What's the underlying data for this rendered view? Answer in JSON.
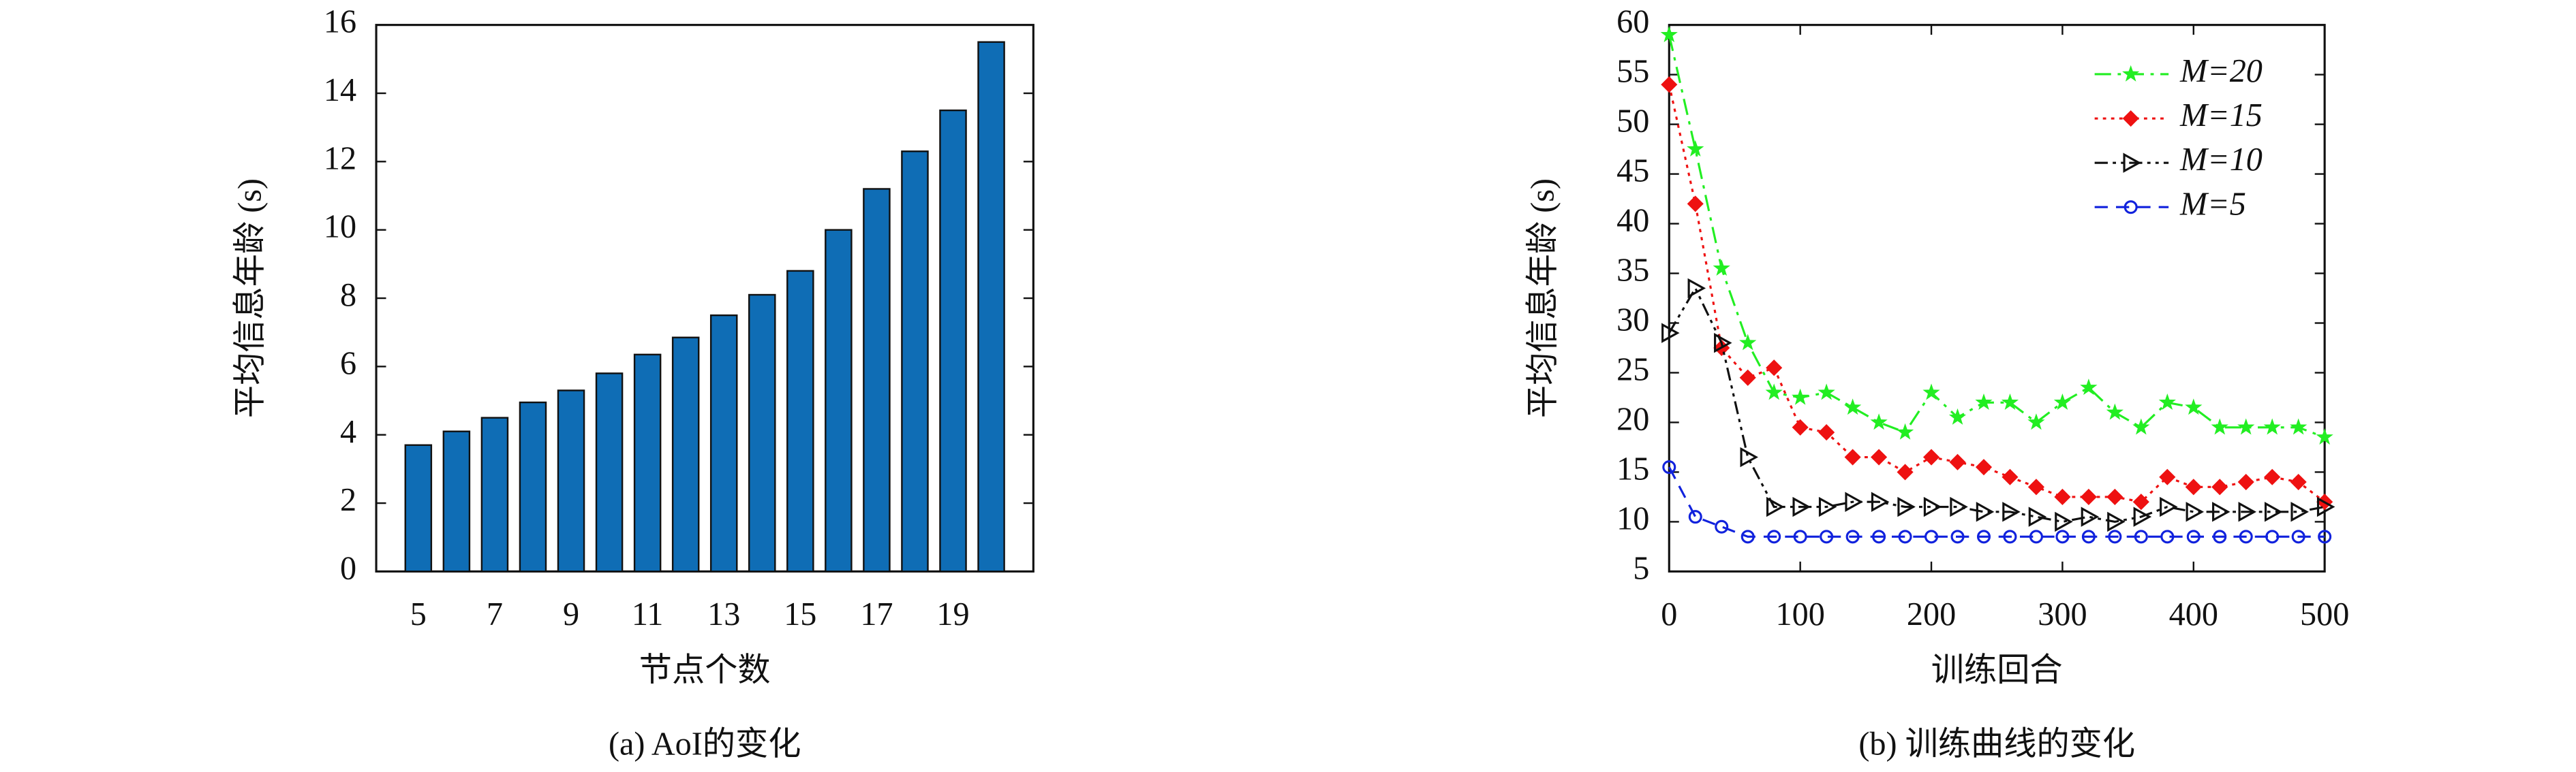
{
  "chart_data": [
    {
      "type": "bar",
      "caption": "(a) AoI的变化",
      "x_label": "节点个数",
      "y_label": "平均信息年龄 (s)",
      "categories": [
        5,
        null,
        7,
        null,
        9,
        null,
        11,
        null,
        13,
        null,
        15,
        null,
        17,
        null,
        19,
        null
      ],
      "values": [
        3.7,
        4.1,
        4.5,
        4.95,
        5.3,
        5.8,
        6.35,
        6.85,
        7.5,
        8.1,
        8.8,
        10.0,
        11.2,
        12.3,
        13.5,
        15.5
      ],
      "color": "#0f6db5",
      "ylim": [
        0,
        16
      ],
      "yticks": [
        0,
        2,
        4,
        6,
        8,
        10,
        12,
        14,
        16
      ]
    },
    {
      "type": "line",
      "caption": "(b) 训练曲线的变化",
      "x_label": "训练回合",
      "y_label": "平均信息年龄 (s)",
      "x": [
        0,
        20,
        40,
        60,
        80,
        100,
        120,
        140,
        160,
        180,
        200,
        220,
        240,
        260,
        280,
        300,
        320,
        340,
        360,
        380,
        400,
        420,
        440,
        460,
        480,
        500
      ],
      "xlim": [
        0,
        500
      ],
      "xticks": [
        0,
        100,
        200,
        300,
        400,
        500
      ],
      "ylim": [
        5,
        60
      ],
      "yticks": [
        5,
        10,
        15,
        20,
        25,
        30,
        35,
        40,
        45,
        50,
        55,
        60
      ],
      "legend": "upper right",
      "series": [
        {
          "name": "M=20",
          "color": "#22ee22",
          "marker": "star",
          "dash": "dashdot",
          "values": [
            59,
            47.5,
            35.5,
            28,
            23,
            22.5,
            23,
            21.5,
            20,
            19,
            23,
            20.5,
            22,
            22,
            20,
            22,
            23.5,
            21,
            19.5,
            22,
            21.5,
            19.5,
            19.5,
            19.5,
            19.5,
            18.5
          ]
        },
        {
          "name": "M=15",
          "color": "#ee1111",
          "marker": "diamond",
          "dash": "dotted",
          "values": [
            54,
            42,
            27.5,
            24.5,
            25.5,
            19.5,
            19,
            16.5,
            16.5,
            15,
            16.5,
            16,
            15.5,
            14.5,
            13.5,
            12.5,
            12.5,
            12.5,
            12,
            14.5,
            13.5,
            13.5,
            14,
            14.5,
            14,
            12
          ]
        },
        {
          "name": "M=10",
          "color": "#111111",
          "marker": "triangle",
          "dash": "dashdotdot",
          "values": [
            29,
            33.5,
            28,
            16.5,
            11.5,
            11.5,
            11.5,
            12,
            12,
            11.5,
            11.5,
            11.5,
            11,
            11,
            10.5,
            10,
            10.5,
            10,
            10.5,
            11.5,
            11,
            11,
            11,
            11,
            11,
            11.5
          ]
        },
        {
          "name": "M=5",
          "color": "#1122dd",
          "marker": "circle",
          "dash": "dashed",
          "values": [
            15.5,
            10.5,
            9.5,
            8.5,
            8.5,
            8.5,
            8.5,
            8.5,
            8.5,
            8.5,
            8.5,
            8.5,
            8.5,
            8.5,
            8.5,
            8.5,
            8.5,
            8.5,
            8.5,
            8.5,
            8.5,
            8.5,
            8.5,
            8.5,
            8.5,
            8.5
          ]
        }
      ]
    }
  ]
}
